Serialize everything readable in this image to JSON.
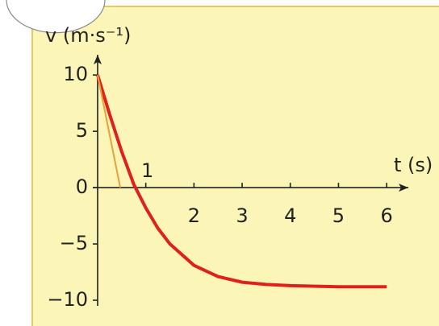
{
  "chart_data": {
    "type": "line",
    "y_label": "v (m·s⁻¹)",
    "x_label": "t (s)",
    "xlim": [
      -0.1,
      6.45
    ],
    "ylim": [
      -10.5,
      11.8
    ],
    "xticks": [
      1,
      2,
      3,
      4,
      5,
      6
    ],
    "yticks": [
      10,
      5,
      0,
      {
        "value": -5,
        "label": "−5"
      },
      {
        "value": -10,
        "label": "−10"
      }
    ],
    "series": [
      {
        "color": "#e0201c",
        "x": [
          0,
          0.25,
          0.5,
          0.75,
          1,
          1.25,
          1.5,
          2,
          2.5,
          3,
          3.5,
          4,
          5,
          6
        ],
        "values": [
          10,
          6.5,
          3.2,
          0.3,
          -1.8,
          -3.6,
          -5.0,
          -6.9,
          -7.9,
          -8.4,
          -8.6,
          -8.7,
          -8.8,
          -8.8
        ]
      },
      {
        "color": "#e8a03a",
        "x": [
          0,
          0.47
        ],
        "values": [
          10,
          0
        ]
      }
    ]
  }
}
